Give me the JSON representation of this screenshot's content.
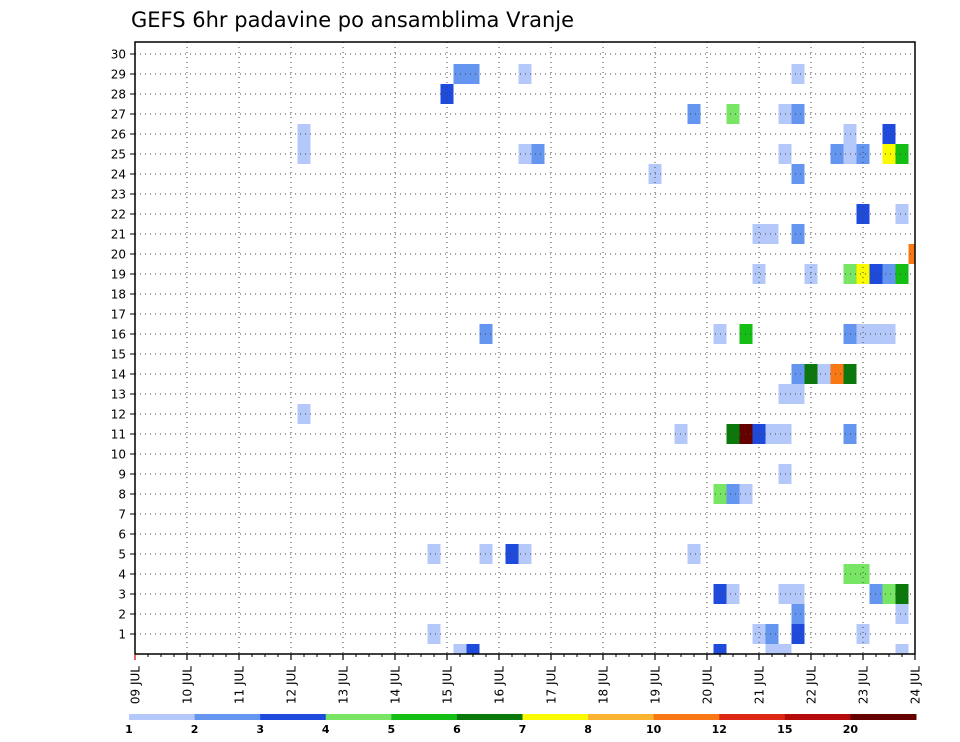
{
  "chart_data": {
    "type": "heatmap",
    "title": "GEFS 6hr padavine po ansamblima Vranje",
    "xlabel": "",
    "ylabel": "",
    "x_tick_labels": [
      "09 JUL",
      "10 JUL",
      "11 JUL",
      "12 JUL",
      "13 JUL",
      "14 JUL",
      "15 JUL",
      "16 JUL",
      "17 JUL",
      "18 JUL",
      "19 JUL",
      "20 JUL",
      "21 JUL",
      "22 JUL",
      "23 JUL",
      "24 JUL"
    ],
    "xlim": [
      0,
      60
    ],
    "y_tick_labels": [
      "1",
      "2",
      "3",
      "4",
      "5",
      "6",
      "7",
      "8",
      "9",
      "10",
      "11",
      "12",
      "13",
      "14",
      "15",
      "16",
      "17",
      "18",
      "19",
      "20",
      "21",
      "22",
      "23",
      "24",
      "25",
      "26",
      "27",
      "28",
      "29",
      "30"
    ],
    "ylim": [
      0,
      30
    ],
    "grid": true,
    "colorbar": {
      "colors": [
        "#b4c8fa",
        "#6496f0",
        "#1e4bdc",
        "#78e664",
        "#14be14",
        "#0a780a",
        "#fafa00",
        "#fab432",
        "#fa7814",
        "#dc2814",
        "#b40a0a",
        "#640000"
      ],
      "labels": [
        "1",
        "2",
        "3",
        "4",
        "5",
        "6",
        "7",
        "8",
        "10",
        "12",
        "15",
        "20"
      ]
    },
    "cells": [
      [
        25,
        0,
        1
      ],
      [
        26,
        0,
        3
      ],
      [
        45,
        0,
        3
      ],
      [
        49,
        0,
        1
      ],
      [
        50,
        0,
        1
      ],
      [
        59,
        0,
        1
      ],
      [
        23,
        1,
        1
      ],
      [
        48,
        1,
        1
      ],
      [
        49,
        1,
        2
      ],
      [
        51,
        1,
        3
      ],
      [
        56,
        1,
        1
      ],
      [
        51,
        2,
        2
      ],
      [
        59,
        2,
        1
      ],
      [
        45,
        3,
        3
      ],
      [
        46,
        3,
        1
      ],
      [
        50,
        3,
        1
      ],
      [
        51,
        3,
        1
      ],
      [
        57,
        3,
        2
      ],
      [
        58,
        3,
        4
      ],
      [
        59,
        3,
        6
      ],
      [
        55,
        4,
        4
      ],
      [
        56,
        4,
        4
      ],
      [
        23,
        5,
        1
      ],
      [
        27,
        5,
        1
      ],
      [
        29,
        5,
        3
      ],
      [
        30,
        5,
        1
      ],
      [
        43,
        5,
        1
      ],
      [
        45,
        8,
        4
      ],
      [
        46,
        8,
        2
      ],
      [
        47,
        8,
        1
      ],
      [
        50,
        9,
        1
      ],
      [
        42,
        11,
        1
      ],
      [
        46,
        11,
        6
      ],
      [
        47,
        11,
        12
      ],
      [
        48,
        11,
        3
      ],
      [
        49,
        11,
        1
      ],
      [
        50,
        11,
        1
      ],
      [
        55,
        11,
        2
      ],
      [
        13,
        12,
        1
      ],
      [
        50,
        13,
        1
      ],
      [
        51,
        13,
        1
      ],
      [
        51,
        14,
        2
      ],
      [
        52,
        14,
        6
      ],
      [
        53,
        14,
        1
      ],
      [
        54,
        14,
        9
      ],
      [
        55,
        14,
        6
      ],
      [
        27,
        16,
        2
      ],
      [
        45,
        16,
        1
      ],
      [
        47,
        16,
        5
      ],
      [
        55,
        16,
        2
      ],
      [
        56,
        16,
        1
      ],
      [
        57,
        16,
        1
      ],
      [
        58,
        16,
        1
      ],
      [
        48,
        19,
        1
      ],
      [
        52,
        19,
        1
      ],
      [
        55,
        19,
        4
      ],
      [
        56,
        19,
        7
      ],
      [
        57,
        19,
        3
      ],
      [
        58,
        19,
        2
      ],
      [
        59,
        19,
        5
      ],
      [
        60,
        20,
        9
      ],
      [
        48,
        21,
        1
      ],
      [
        49,
        21,
        1
      ],
      [
        51,
        21,
        2
      ],
      [
        56,
        22,
        3
      ],
      [
        59,
        22,
        1
      ],
      [
        40,
        24,
        1
      ],
      [
        51,
        24,
        2
      ],
      [
        13,
        25,
        1
      ],
      [
        30,
        25,
        1
      ],
      [
        31,
        25,
        2
      ],
      [
        50,
        25,
        1
      ],
      [
        54,
        25,
        2
      ],
      [
        55,
        25,
        1
      ],
      [
        56,
        25,
        2
      ],
      [
        58,
        25,
        7
      ],
      [
        59,
        25,
        5
      ],
      [
        13,
        26,
        1
      ],
      [
        55,
        26,
        1
      ],
      [
        58,
        26,
        3
      ],
      [
        43,
        27,
        2
      ],
      [
        46,
        27,
        4
      ],
      [
        50,
        27,
        1
      ],
      [
        51,
        27,
        2
      ],
      [
        24,
        28,
        3
      ],
      [
        25,
        29,
        2
      ],
      [
        26,
        29,
        2
      ],
      [
        30,
        29,
        1
      ],
      [
        51,
        29,
        1
      ]
    ]
  }
}
